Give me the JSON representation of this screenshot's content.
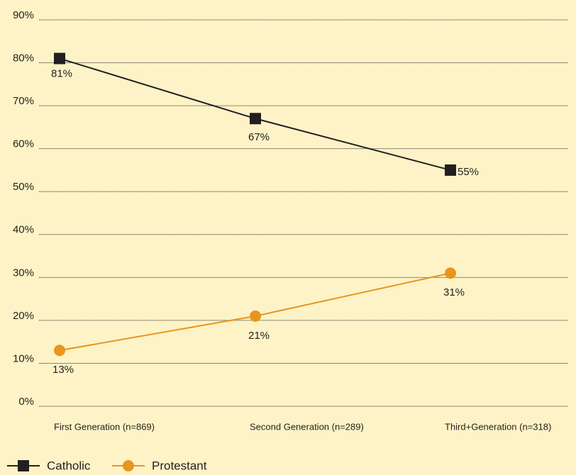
{
  "chart_data": {
    "type": "line",
    "categories": [
      "First Generation (n=869)",
      "Second Generation (n=289)",
      "Third+Generation (n=318)"
    ],
    "series": [
      {
        "name": "Catholic",
        "color": "#231f20",
        "marker": "square",
        "values": [
          81,
          67,
          55
        ],
        "value_labels": [
          "81%",
          "67%",
          "55%"
        ]
      },
      {
        "name": "Protestant",
        "color": "#e8951f",
        "marker": "circle",
        "values": [
          13,
          21,
          31
        ],
        "value_labels": [
          "13%",
          "21%",
          "31%"
        ]
      }
    ],
    "ylim": [
      0,
      90
    ],
    "yticks": [
      {
        "value": 0,
        "label": "0%"
      },
      {
        "value": 10,
        "label": "10%"
      },
      {
        "value": 20,
        "label": "20%"
      },
      {
        "value": 30,
        "label": "30%"
      },
      {
        "value": 40,
        "label": "40%"
      },
      {
        "value": 50,
        "label": "50%"
      },
      {
        "value": 60,
        "label": "60%"
      },
      {
        "value": 70,
        "label": "70%"
      },
      {
        "value": 80,
        "label": "80%"
      },
      {
        "value": 90,
        "label": "90%"
      }
    ],
    "grid": true,
    "legend": "bottom-left"
  }
}
